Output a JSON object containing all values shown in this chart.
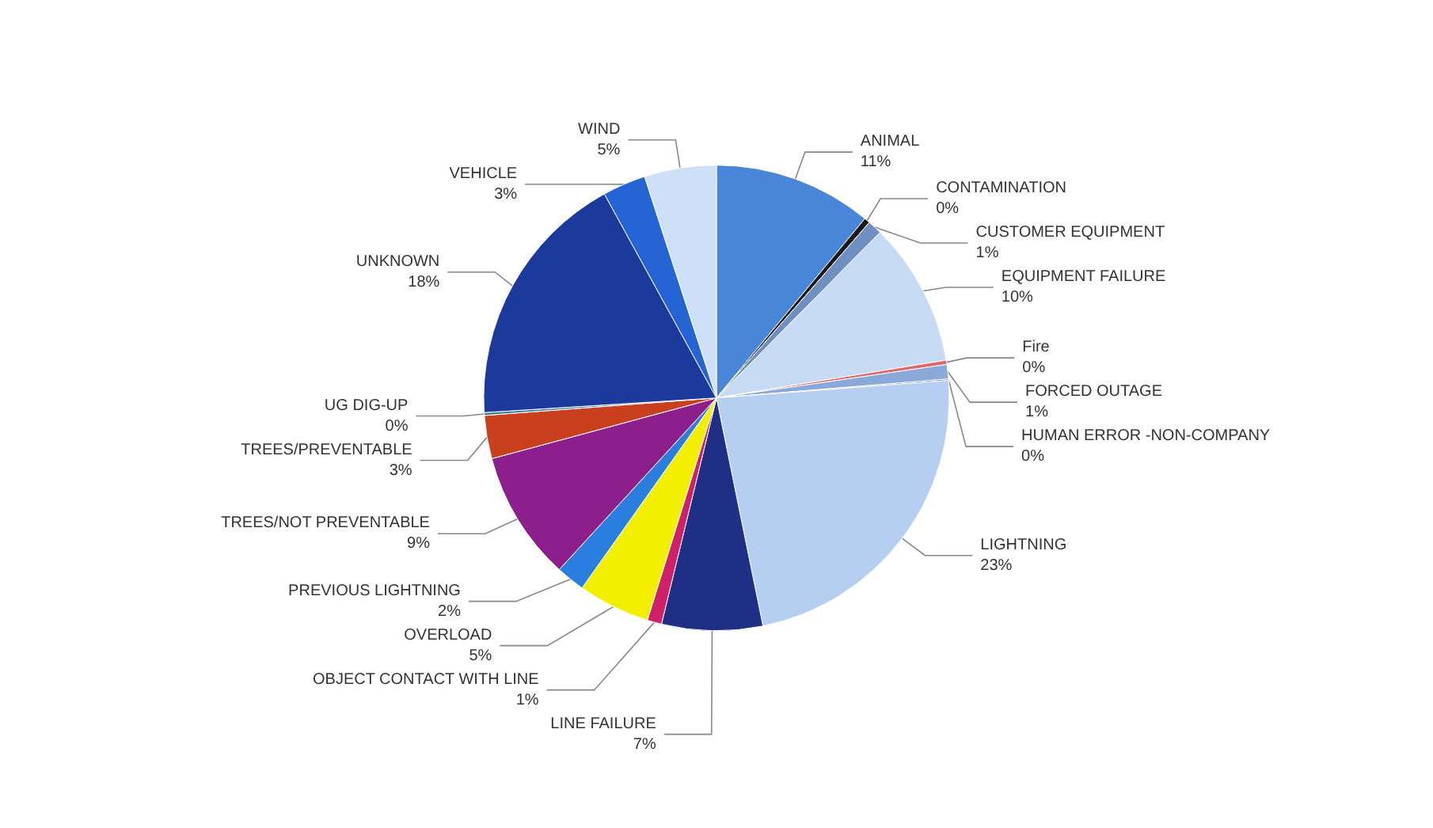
{
  "chart_data": {
    "type": "pie",
    "categories": [
      "ANIMAL",
      "CONTAMINATION",
      "CUSTOMER EQUIPMENT",
      "EQUIPMENT FAILURE",
      "Fire",
      "FORCED OUTAGE",
      "HUMAN ERROR -NON-COMPANY",
      "LIGHTNING",
      "LINE FAILURE",
      "OBJECT CONTACT WITH LINE",
      "OVERLOAD",
      "PREVIOUS LIGHTNING",
      "TREES/NOT PREVENTABLE",
      "TREES/PREVENTABLE",
      "UG DIG-UP",
      "UNKNOWN",
      "VEHICLE",
      "WIND"
    ],
    "values": [
      11,
      0.4,
      1,
      10,
      0.3,
      1,
      0.1,
      23,
      7,
      1,
      5,
      2,
      9,
      3,
      0.2,
      18,
      3,
      5
    ],
    "value_labels": [
      "11%",
      "0%",
      "1%",
      "10%",
      "0%",
      "1%",
      "0%",
      "23%",
      "7%",
      "1%",
      "5%",
      "2%",
      "9%",
      "3%",
      "0%",
      "18%",
      "3%",
      "5%"
    ],
    "colors": [
      "#4a86d8",
      "#1a1a1a",
      "#6f8fc0",
      "#c6daf4",
      "#e06868",
      "#8aa8d8",
      "#5070a8",
      "#b6cff0",
      "#1f2f85",
      "#d0206a",
      "#f2f000",
      "#2a7ee0",
      "#8c1f8c",
      "#c8401e",
      "#3f7f9f",
      "#1c3a9c",
      "#2464d4",
      "#cde0f8"
    ],
    "legend": false
  }
}
